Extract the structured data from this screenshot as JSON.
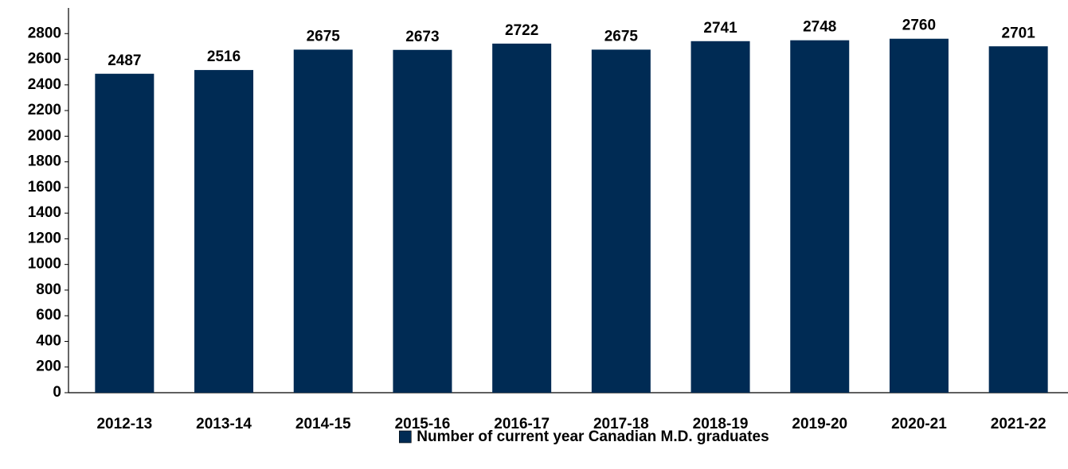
{
  "chart_data": {
    "type": "bar",
    "categories": [
      "2012-13",
      "2013-14",
      "2014-15",
      "2015-16",
      "2016-17",
      "2017-18",
      "2018-19",
      "2019-20",
      "2020-21",
      "2021-22"
    ],
    "series": [
      {
        "name": "Number of current year Canadian M.D. graduates",
        "color": "#002b54",
        "values": [
          2487,
          2516,
          2675,
          2673,
          2722,
          2675,
          2741,
          2748,
          2760,
          2701
        ]
      }
    ],
    "ylim": [
      0,
      3000
    ],
    "yticks": [
      0,
      200,
      400,
      600,
      800,
      1000,
      1200,
      1400,
      1600,
      1800,
      2000,
      2200,
      2400,
      2600,
      2800
    ],
    "grid": false,
    "legend": "bottom"
  }
}
